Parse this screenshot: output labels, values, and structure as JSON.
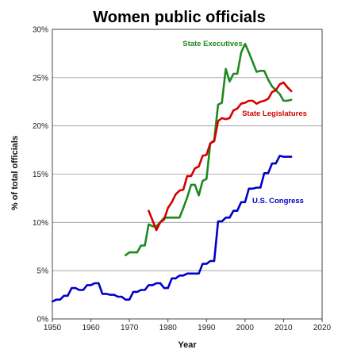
{
  "chart_data": {
    "type": "line",
    "title": "Women public officials",
    "xlabel": "Year",
    "ylabel": "% of total officials",
    "xlim": [
      1950,
      2020
    ],
    "ylim": [
      0,
      30
    ],
    "x_ticks": [
      "1950",
      "1960",
      "1970",
      "1980",
      "1990",
      "2000",
      "2010",
      "2020"
    ],
    "y_ticks": [
      "0%",
      "5%",
      "10%",
      "15%",
      "20%",
      "25%",
      "30%"
    ],
    "grid": "horizontal",
    "series": [
      {
        "name": "State Executives",
        "color": "#1e8a1e",
        "points": [
          [
            1969,
            6.6
          ],
          [
            1970,
            6.9
          ],
          [
            1971,
            6.9
          ],
          [
            1972,
            6.9
          ],
          [
            1973,
            7.6
          ],
          [
            1974,
            7.6
          ],
          [
            1975,
            9.8
          ],
          [
            1976,
            9.6
          ],
          [
            1977,
            9.6
          ],
          [
            1978,
            10.0
          ],
          [
            1979,
            10.5
          ],
          [
            1980,
            10.5
          ],
          [
            1981,
            10.5
          ],
          [
            1982,
            10.5
          ],
          [
            1983,
            10.5
          ],
          [
            1984,
            11.5
          ],
          [
            1985,
            12.6
          ],
          [
            1986,
            13.9
          ],
          [
            1987,
            13.9
          ],
          [
            1988,
            12.8
          ],
          [
            1989,
            14.3
          ],
          [
            1990,
            14.5
          ],
          [
            1991,
            18.2
          ],
          [
            1992,
            18.5
          ],
          [
            1993,
            22.2
          ],
          [
            1994,
            22.4
          ],
          [
            1995,
            25.9
          ],
          [
            1996,
            24.6
          ],
          [
            1997,
            25.4
          ],
          [
            1998,
            25.4
          ],
          [
            1999,
            27.6
          ],
          [
            2000,
            28.5
          ],
          [
            2001,
            27.6
          ],
          [
            2002,
            26.6
          ],
          [
            2003,
            25.6
          ],
          [
            2004,
            25.7
          ],
          [
            2005,
            25.7
          ],
          [
            2006,
            24.8
          ],
          [
            2007,
            24.1
          ],
          [
            2008,
            23.7
          ],
          [
            2009,
            23.3
          ],
          [
            2010,
            22.6
          ],
          [
            2011,
            22.6
          ],
          [
            2012,
            22.7
          ]
        ]
      },
      {
        "name": "State Legislatures",
        "color": "#d40000",
        "points": [
          [
            1975,
            11.2
          ],
          [
            1976,
            10.2
          ],
          [
            1977,
            9.2
          ],
          [
            1978,
            10.0
          ],
          [
            1979,
            10.3
          ],
          [
            1980,
            11.5
          ],
          [
            1981,
            12.1
          ],
          [
            1982,
            12.9
          ],
          [
            1983,
            13.3
          ],
          [
            1984,
            13.4
          ],
          [
            1985,
            14.8
          ],
          [
            1986,
            14.8
          ],
          [
            1987,
            15.6
          ],
          [
            1988,
            15.8
          ],
          [
            1989,
            16.9
          ],
          [
            1990,
            17.0
          ],
          [
            1991,
            18.2
          ],
          [
            1992,
            18.4
          ],
          [
            1993,
            20.5
          ],
          [
            1994,
            20.8
          ],
          [
            1995,
            20.7
          ],
          [
            1996,
            20.8
          ],
          [
            1997,
            21.6
          ],
          [
            1998,
            21.8
          ],
          [
            1999,
            22.3
          ],
          [
            2000,
            22.4
          ],
          [
            2001,
            22.6
          ],
          [
            2002,
            22.6
          ],
          [
            2003,
            22.3
          ],
          [
            2004,
            22.5
          ],
          [
            2005,
            22.6
          ],
          [
            2006,
            22.8
          ],
          [
            2007,
            23.5
          ],
          [
            2008,
            23.7
          ],
          [
            2009,
            24.3
          ],
          [
            2010,
            24.5
          ],
          [
            2011,
            24.0
          ],
          [
            2012,
            23.6
          ]
        ]
      },
      {
        "name": "U.S. Congress",
        "color": "#0000c8",
        "points": [
          [
            1950,
            1.8
          ],
          [
            1951,
            2.0
          ],
          [
            1952,
            2.0
          ],
          [
            1953,
            2.4
          ],
          [
            1954,
            2.4
          ],
          [
            1955,
            3.2
          ],
          [
            1956,
            3.2
          ],
          [
            1957,
            3.0
          ],
          [
            1958,
            3.0
          ],
          [
            1959,
            3.5
          ],
          [
            1960,
            3.5
          ],
          [
            1961,
            3.7
          ],
          [
            1962,
            3.7
          ],
          [
            1963,
            2.6
          ],
          [
            1964,
            2.6
          ],
          [
            1965,
            2.5
          ],
          [
            1966,
            2.5
          ],
          [
            1967,
            2.3
          ],
          [
            1968,
            2.3
          ],
          [
            1969,
            2.0
          ],
          [
            1970,
            2.0
          ],
          [
            1971,
            2.8
          ],
          [
            1972,
            2.8
          ],
          [
            1973,
            3.0
          ],
          [
            1974,
            3.0
          ],
          [
            1975,
            3.5
          ],
          [
            1976,
            3.5
          ],
          [
            1977,
            3.7
          ],
          [
            1978,
            3.7
          ],
          [
            1979,
            3.2
          ],
          [
            1980,
            3.2
          ],
          [
            1981,
            4.2
          ],
          [
            1982,
            4.2
          ],
          [
            1983,
            4.5
          ],
          [
            1984,
            4.5
          ],
          [
            1985,
            4.7
          ],
          [
            1986,
            4.7
          ],
          [
            1987,
            4.7
          ],
          [
            1988,
            4.7
          ],
          [
            1989,
            5.7
          ],
          [
            1990,
            5.7
          ],
          [
            1991,
            6.0
          ],
          [
            1992,
            6.0
          ],
          [
            1993,
            10.1
          ],
          [
            1994,
            10.1
          ],
          [
            1995,
            10.5
          ],
          [
            1996,
            10.5
          ],
          [
            1997,
            11.2
          ],
          [
            1998,
            11.2
          ],
          [
            1999,
            12.1
          ],
          [
            2000,
            12.1
          ],
          [
            2001,
            13.5
          ],
          [
            2002,
            13.5
          ],
          [
            2003,
            13.6
          ],
          [
            2004,
            13.6
          ],
          [
            2005,
            15.1
          ],
          [
            2006,
            15.1
          ],
          [
            2007,
            16.1
          ],
          [
            2008,
            16.1
          ],
          [
            2009,
            16.9
          ],
          [
            2010,
            16.8
          ],
          [
            2011,
            16.8
          ],
          [
            2012,
            16.8
          ]
        ]
      }
    ]
  }
}
